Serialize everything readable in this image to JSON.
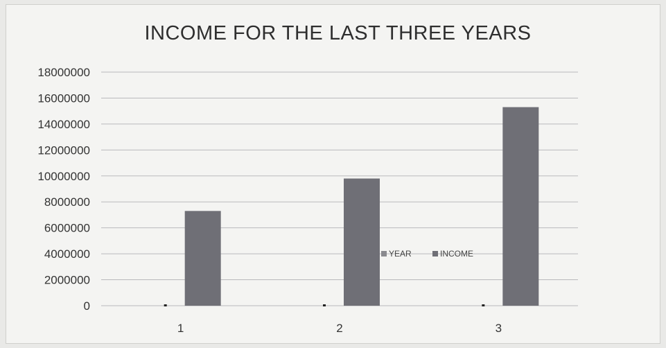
{
  "chart_data": {
    "type": "bar",
    "title": "INCOME FOR THE LAST THREE YEARS",
    "categories": [
      "1",
      "2",
      "3"
    ],
    "series": [
      {
        "name": "YEAR",
        "values": [
          1,
          2,
          3
        ],
        "color": "#8a8a8f"
      },
      {
        "name": "INCOME",
        "values": [
          7300000,
          9800000,
          15300000
        ],
        "color": "#6f6f76"
      }
    ],
    "y_ticks": [
      "0",
      "2000000",
      "4000000",
      "6000000",
      "8000000",
      "10000000",
      "12000000",
      "14000000",
      "16000000",
      "18000000"
    ],
    "ylim": [
      0,
      18000000
    ],
    "grid": true,
    "legend": "center-right"
  }
}
